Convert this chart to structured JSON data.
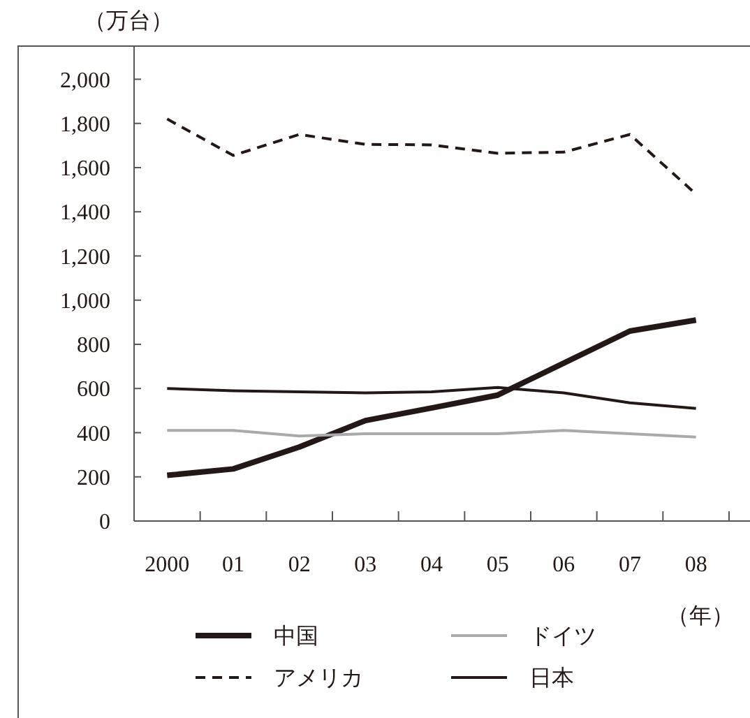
{
  "chart_data": {
    "type": "line",
    "ylabel": "（万台）",
    "xlabel": "（年）",
    "categories": [
      "2000",
      "01",
      "02",
      "03",
      "04",
      "05",
      "06",
      "07",
      "08"
    ],
    "series": [
      {
        "name": "中国",
        "color": "#231815",
        "line_style": "solid",
        "values": [
          207,
          236,
          335,
          455,
          512,
          570,
          715,
          860,
          910
        ]
      },
      {
        "name": "ドイツ",
        "color": "#aaaaaa",
        "line_style": "solid",
        "values": [
          410,
          410,
          385,
          395,
          395,
          395,
          410,
          395,
          380
        ]
      },
      {
        "name": "アメリカ",
        "color": "#231815",
        "line_style": "dashed",
        "values": [
          1820,
          1655,
          1750,
          1705,
          1703,
          1665,
          1670,
          1750,
          1480
        ]
      },
      {
        "name": "日本",
        "color": "#231815",
        "line_style": "solid",
        "values": [
          600,
          590,
          585,
          580,
          585,
          605,
          580,
          535,
          510
        ]
      }
    ],
    "ylim": [
      0,
      2150
    ],
    "yticks": [
      0,
      {
        "value": 200,
        "label": "200"
      },
      {
        "value": 400,
        "label": "400"
      },
      {
        "value": 600,
        "label": "600"
      },
      {
        "value": 800,
        "label": "800"
      },
      {
        "value": 1000,
        "label": "1,000"
      },
      {
        "value": 1200,
        "label": "1,200"
      },
      {
        "value": 1400,
        "label": "1,400"
      },
      {
        "value": 1600,
        "label": "1,600"
      },
      {
        "value": 1800,
        "label": "1,800"
      },
      {
        "value": 2000,
        "label": "2,000"
      }
    ],
    "grid": false,
    "legend": "bottom",
    "marker": "none"
  }
}
